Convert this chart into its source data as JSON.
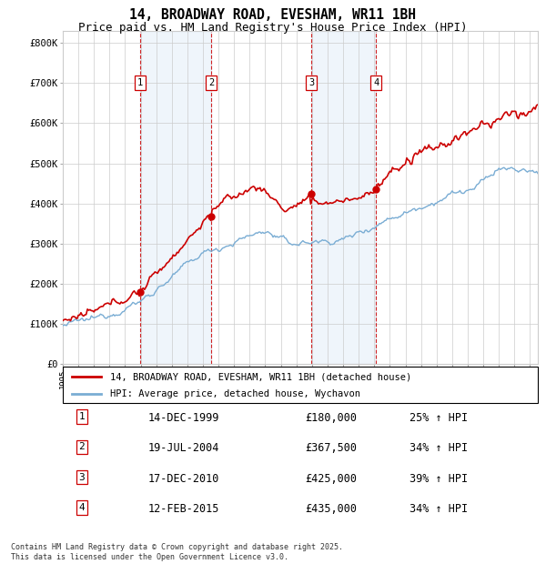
{
  "title": "14, BROADWAY ROAD, EVESHAM, WR11 1BH",
  "subtitle": "Price paid vs. HM Land Registry's House Price Index (HPI)",
  "legend_property": "14, BROADWAY ROAD, EVESHAM, WR11 1BH (detached house)",
  "legend_hpi": "HPI: Average price, detached house, Wychavon",
  "footer": "Contains HM Land Registry data © Crown copyright and database right 2025.\nThis data is licensed under the Open Government Licence v3.0.",
  "transactions": [
    {
      "num": 1,
      "date": "14-DEC-1999",
      "price": 180000,
      "hpi_pct": "25% ↑ HPI"
    },
    {
      "num": 2,
      "date": "19-JUL-2004",
      "price": 367500,
      "hpi_pct": "34% ↑ HPI"
    },
    {
      "num": 3,
      "date": "17-DEC-2010",
      "price": 425000,
      "hpi_pct": "39% ↑ HPI"
    },
    {
      "num": 4,
      "date": "12-FEB-2015",
      "price": 435000,
      "hpi_pct": "34% ↑ HPI"
    }
  ],
  "y_ticks": [
    0,
    100000,
    200000,
    300000,
    400000,
    500000,
    600000,
    700000,
    800000
  ],
  "y_labels": [
    "£0",
    "£100K",
    "£200K",
    "£300K",
    "£400K",
    "£500K",
    "£600K",
    "£700K",
    "£800K"
  ],
  "ylim": [
    0,
    830000
  ],
  "property_color": "#cc0000",
  "hpi_color": "#7aadd4",
  "background_color": "#ffffff",
  "plot_bg_color": "#ffffff",
  "grid_color": "#cccccc",
  "shade_color": "#ddeeff",
  "dashed_line_color": "#cc0000",
  "title_fontsize": 10.5,
  "subtitle_fontsize": 9
}
